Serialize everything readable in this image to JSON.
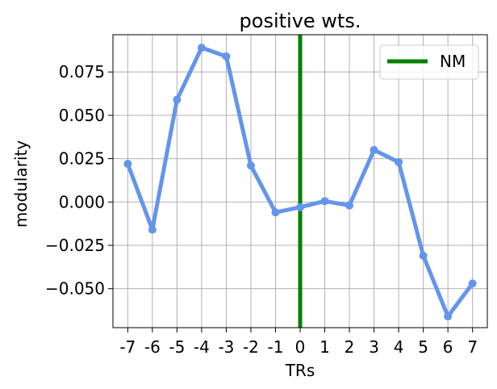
{
  "chart_data": {
    "type": "line",
    "title": "positive wts.",
    "xlabel": "TRs",
    "ylabel": "modularity",
    "xlim": [
      -7.6,
      7.6
    ],
    "ylim": [
      -0.0725,
      0.0965
    ],
    "grid": true,
    "legend_position": "top-right",
    "x_ticks": [
      -7,
      -6,
      -5,
      -4,
      -3,
      -2,
      -1,
      0,
      1,
      2,
      3,
      4,
      5,
      6,
      7
    ],
    "x_tick_labels": [
      "-7",
      "-6",
      "-5",
      "-4",
      "-3",
      "-2",
      "-1",
      "0",
      "1",
      "2",
      "3",
      "4",
      "5",
      "6",
      "7"
    ],
    "y_ticks": [
      0.075,
      0.05,
      0.025,
      0.0,
      -0.025,
      -0.05
    ],
    "y_tick_labels": [
      "0.075",
      "0.050",
      "0.025",
      "0.000",
      "−0.025",
      "−0.050"
    ],
    "series": [
      {
        "color": "#6495ED",
        "x": [
          -7,
          -6,
          -5,
          -4,
          -3,
          -2,
          -1,
          0,
          1,
          2,
          3,
          4,
          5,
          6,
          7
        ],
        "y": [
          0.022,
          -0.016,
          0.059,
          0.089,
          0.084,
          0.021,
          -0.006,
          -0.003,
          0.0005,
          -0.002,
          0.03,
          0.023,
          -0.031,
          -0.066,
          -0.047
        ]
      }
    ],
    "vlines": [
      {
        "name": "NM",
        "x": 0,
        "color": "#008000"
      }
    ]
  }
}
